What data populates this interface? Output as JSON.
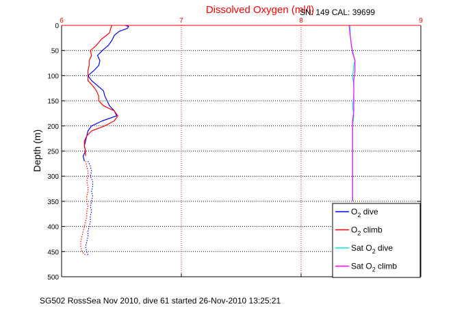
{
  "chart_data": {
    "type": "line",
    "title": "Dissolved Oxygen (ml/l)",
    "subtitle": "SN: 149  CAL: 39699",
    "ylabel": "Depth (m)",
    "footer": "SG502 RossSea Nov 2010, dive 61 started 26-Nov-2010 13:25:21",
    "xlim": [
      6,
      9
    ],
    "ylim": [
      0,
      500
    ],
    "y_reversed": true,
    "x_ticks": [
      "6",
      "7",
      "8",
      "9"
    ],
    "y_ticks": [
      "0",
      "50",
      "100",
      "150",
      "200",
      "250",
      "300",
      "350",
      "400",
      "450",
      "500"
    ],
    "grid": true,
    "legend_position": "bottom-right",
    "colors": {
      "title": "#ff0000",
      "axis_top": "#ff0000",
      "grid": "#ff0000"
    },
    "series": [
      {
        "name": "O2 dive",
        "legend_main": "O",
        "legend_sub": "2",
        "legend_rest": " dive",
        "color": "#0000ff",
        "style": "solid",
        "points": [
          [
            6.53,
            0
          ],
          [
            6.56,
            2
          ],
          [
            6.55,
            6
          ],
          [
            6.48,
            12
          ],
          [
            6.44,
            20
          ],
          [
            6.42,
            30
          ],
          [
            6.39,
            40
          ],
          [
            6.34,
            50
          ],
          [
            6.3,
            60
          ],
          [
            6.32,
            70
          ],
          [
            6.31,
            80
          ],
          [
            6.27,
            90
          ],
          [
            6.22,
            100
          ],
          [
            6.25,
            110
          ],
          [
            6.3,
            120
          ],
          [
            6.35,
            130
          ],
          [
            6.36,
            140
          ],
          [
            6.38,
            150
          ],
          [
            6.4,
            160
          ],
          [
            6.44,
            170
          ],
          [
            6.46,
            180
          ],
          [
            6.34,
            190
          ],
          [
            6.25,
            200
          ],
          [
            6.22,
            210
          ],
          [
            6.21,
            220
          ],
          [
            6.2,
            230
          ],
          [
            6.19,
            240
          ],
          [
            6.2,
            250
          ],
          [
            6.18,
            260
          ],
          [
            6.19,
            270
          ]
        ]
      },
      {
        "name": "O2 dive (dotted)",
        "color": "#0000ff",
        "style": "dotted",
        "points": [
          [
            6.22,
            270
          ],
          [
            6.24,
            280
          ],
          [
            6.25,
            290
          ],
          [
            6.24,
            300
          ],
          [
            6.26,
            310
          ],
          [
            6.26,
            320
          ],
          [
            6.25,
            330
          ],
          [
            6.26,
            340
          ],
          [
            6.25,
            350
          ],
          [
            6.24,
            360
          ],
          [
            6.25,
            370
          ],
          [
            6.24,
            380
          ],
          [
            6.24,
            390
          ],
          [
            6.23,
            400
          ],
          [
            6.22,
            410
          ],
          [
            6.22,
            420
          ],
          [
            6.21,
            430
          ],
          [
            6.2,
            440
          ],
          [
            6.21,
            450
          ],
          [
            6.22,
            457
          ]
        ]
      },
      {
        "name": "O2 climb",
        "legend_main": "O",
        "legend_sub": "2",
        "legend_rest": " climb",
        "color": "#ff0000",
        "style": "solid",
        "points": [
          [
            6.42,
            0
          ],
          [
            6.41,
            6
          ],
          [
            6.4,
            15
          ],
          [
            6.33,
            28
          ],
          [
            6.29,
            40
          ],
          [
            6.24,
            50
          ],
          [
            6.25,
            60
          ],
          [
            6.23,
            70
          ],
          [
            6.23,
            80
          ],
          [
            6.22,
            90
          ],
          [
            6.22,
            100
          ],
          [
            6.22,
            110
          ],
          [
            6.26,
            120
          ],
          [
            6.29,
            130
          ],
          [
            6.31,
            140
          ],
          [
            6.31,
            150
          ],
          [
            6.35,
            160
          ],
          [
            6.44,
            170
          ],
          [
            6.47,
            180
          ],
          [
            6.44,
            190
          ],
          [
            6.36,
            200
          ],
          [
            6.25,
            210
          ],
          [
            6.21,
            220
          ],
          [
            6.19,
            230
          ],
          [
            6.19,
            240
          ],
          [
            6.2,
            250
          ],
          [
            6.2,
            260
          ]
        ]
      },
      {
        "name": "O2 climb (dotted)",
        "color": "#ff0000",
        "style": "dotted",
        "points": [
          [
            6.2,
            270
          ],
          [
            6.21,
            280
          ],
          [
            6.22,
            290
          ],
          [
            6.22,
            300
          ],
          [
            6.21,
            310
          ],
          [
            6.22,
            320
          ],
          [
            6.22,
            330
          ],
          [
            6.21,
            340
          ],
          [
            6.21,
            350
          ],
          [
            6.22,
            360
          ],
          [
            6.21,
            370
          ],
          [
            6.21,
            380
          ],
          [
            6.2,
            390
          ],
          [
            6.19,
            400
          ],
          [
            6.18,
            410
          ],
          [
            6.17,
            420
          ],
          [
            6.16,
            430
          ],
          [
            6.16,
            440
          ],
          [
            6.17,
            450
          ],
          [
            6.2,
            457
          ]
        ]
      },
      {
        "name": "Sat O2 dive",
        "legend_main": "Sat O",
        "legend_sub": "2",
        "legend_rest": " dive",
        "color": "#00e5e5",
        "style": "solid",
        "points": [
          [
            8.41,
            0
          ],
          [
            8.41,
            20
          ],
          [
            8.42,
            40
          ],
          [
            8.44,
            60
          ],
          [
            8.45,
            70
          ],
          [
            8.44,
            80
          ],
          [
            8.43,
            100
          ],
          [
            8.44,
            120
          ],
          [
            8.44,
            140
          ],
          [
            8.43,
            160
          ],
          [
            8.44,
            180
          ],
          [
            8.43,
            200
          ],
          [
            8.43,
            220
          ],
          [
            8.43,
            240
          ],
          [
            8.43,
            260
          ],
          [
            8.43,
            280
          ],
          [
            8.43,
            300
          ],
          [
            8.43,
            320
          ],
          [
            8.43,
            350
          ]
        ]
      },
      {
        "name": "Sat O2 climb",
        "legend_main": "Sat O",
        "legend_sub": "2",
        "legend_rest": " climb",
        "color": "#ff00ff",
        "style": "solid",
        "points": [
          [
            8.4,
            0
          ],
          [
            8.41,
            20
          ],
          [
            8.42,
            40
          ],
          [
            8.43,
            55
          ],
          [
            8.45,
            70
          ],
          [
            8.45,
            90
          ],
          [
            8.44,
            110
          ],
          [
            8.44,
            130
          ],
          [
            8.44,
            150
          ],
          [
            8.44,
            170
          ],
          [
            8.43,
            190
          ],
          [
            8.43,
            210
          ],
          [
            8.43,
            230
          ],
          [
            8.43,
            250
          ],
          [
            8.43,
            270
          ],
          [
            8.43,
            290
          ],
          [
            8.43,
            310
          ],
          [
            8.43,
            330
          ],
          [
            8.43,
            350
          ]
        ]
      }
    ]
  }
}
